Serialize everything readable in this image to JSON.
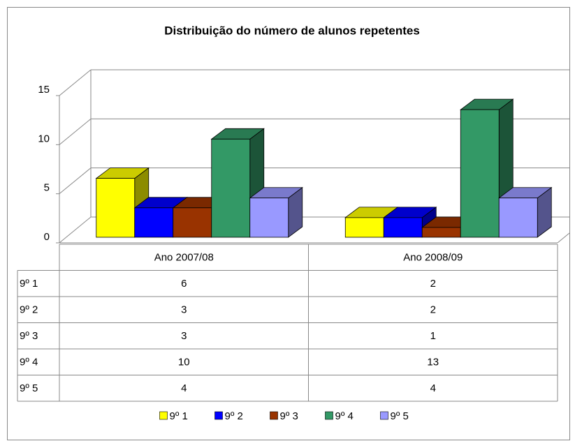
{
  "chart_data": {
    "type": "bar3d",
    "title": "Distribuição do número de alunos repetentes",
    "categories": [
      "Ano 2007/08",
      "Ano 2008/09"
    ],
    "series": [
      {
        "name": "9º 1",
        "color": "#ffff00",
        "values": [
          6,
          2
        ]
      },
      {
        "name": "9º 2",
        "color": "#0000ff",
        "values": [
          3,
          2
        ]
      },
      {
        "name": "9º 3",
        "color": "#993300",
        "values": [
          3,
          1
        ]
      },
      {
        "name": "9º 4",
        "color": "#339966",
        "values": [
          10,
          13
        ]
      },
      {
        "name": "9º 5",
        "color": "#9999ff",
        "values": [
          4,
          4
        ]
      }
    ],
    "ylim": [
      0,
      15
    ],
    "yticks": [
      0,
      5,
      10,
      15
    ],
    "grid": true,
    "legend": "bottom",
    "data_table": true
  }
}
